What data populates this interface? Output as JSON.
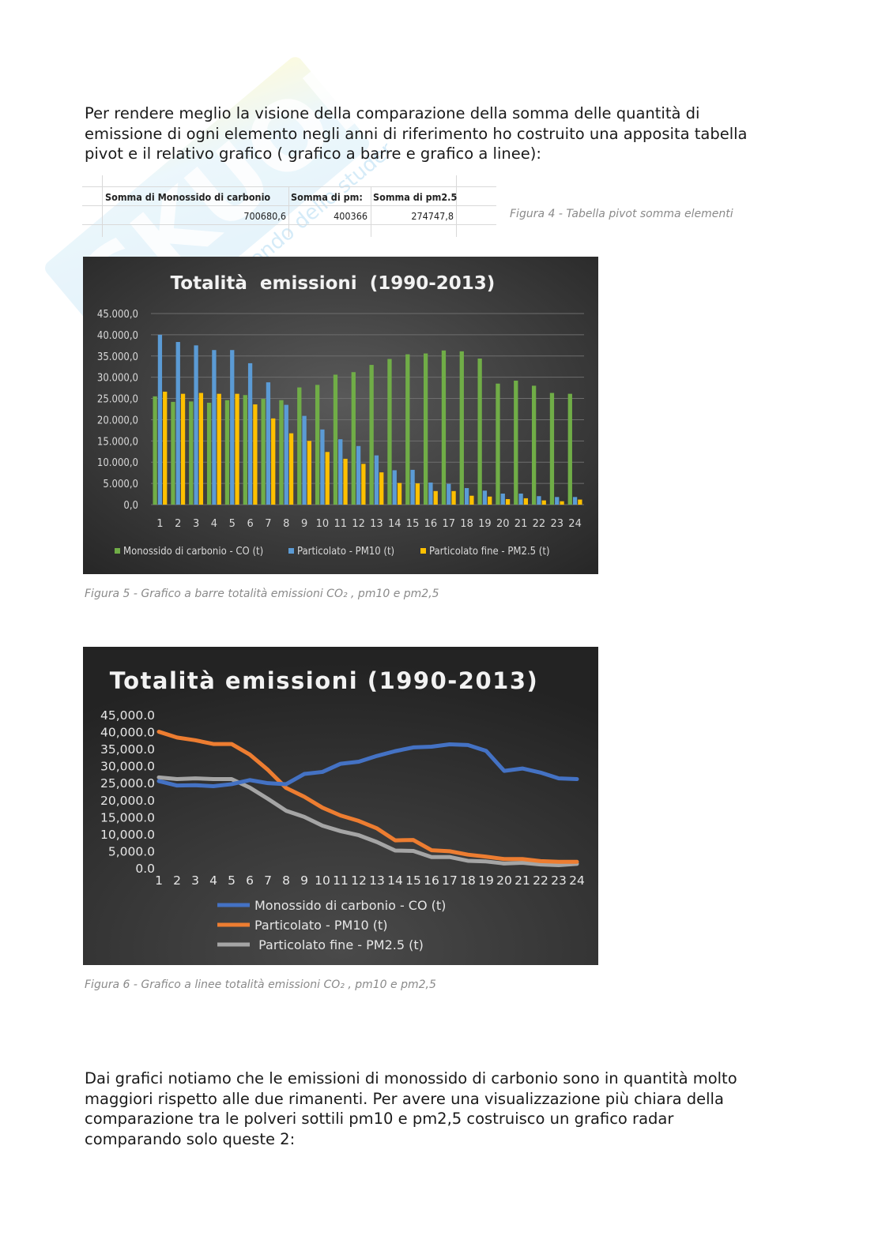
{
  "intro_lines": [
    "Per rendere meglio la visione della comparazione della somma delle quantità di",
    "emissione di ogni elemento negli anni di riferimento ho costruito una apposita tabella",
    "pivot e il relativo grafico ( grafico a barre e grafico a linee):"
  ],
  "pivot": {
    "headers": [
      "Somma di Monossido di carbonio",
      "Somma di pm:",
      "Somma di pm2.5"
    ],
    "values": [
      "700680,6",
      "400366",
      "274747,8"
    ]
  },
  "captions": {
    "fig4": "Figura 4 - Tabella pivot somma elementi",
    "fig5": "Figura 5 - Grafico a barre totalità emissioni CO₂ , pm10 e pm2,5",
    "fig6": "Figura 6 - Grafico a linee totalità emissioni CO₂ , pm10 e pm2,5"
  },
  "outro_lines": [
    "Dai grafici notiamo che le emissioni di monossido di carbonio sono in quantità molto",
    "maggiori rispetto alle due rimanenti. Per avere una visualizzazione più chiara della",
    "comparazione tra le polveri sottili pm10 e pm2,5 costruisco un grafico radar",
    "comparando solo queste 2:"
  ],
  "chart_data": [
    {
      "type": "bar",
      "title": "Totalità  emissioni  (1990-2013)",
      "categories": [
        "1",
        "2",
        "3",
        "4",
        "5",
        "6",
        "7",
        "8",
        "9",
        "10",
        "11",
        "12",
        "13",
        "14",
        "15",
        "16",
        "17",
        "18",
        "19",
        "20",
        "21",
        "22",
        "23",
        "24"
      ],
      "yticks": [
        "0,0",
        "5.000,0",
        "10.000,0",
        "15.000,0",
        "20.000,0",
        "25.000,0",
        "30.000,0",
        "35.000,0",
        "40.000,0",
        "45.000,0"
      ],
      "ylim": [
        0,
        45000
      ],
      "grid": true,
      "legend_position": "bottom",
      "series": [
        {
          "name": "Monossido di carbonio - CO (t)",
          "color": "#70ad47",
          "values": [
            25500,
            24200,
            24300,
            24000,
            24600,
            25800,
            24900,
            24600,
            27600,
            28200,
            30600,
            31200,
            32900,
            34300,
            35400,
            35600,
            36300,
            36100,
            34400,
            28500,
            29200,
            28000,
            26300,
            26100
          ]
        },
        {
          "name": "Particolato - PM10 (t)",
          "color": "#5b9bd5",
          "values": [
            40000,
            38300,
            37500,
            36400,
            36400,
            33300,
            28800,
            23500,
            20900,
            17700,
            15400,
            13800,
            11600,
            8100,
            8200,
            5200,
            4900,
            3900,
            3300,
            2600,
            2600,
            2000,
            1800,
            1800
          ]
        },
        {
          "name": "Particolato fine - PM2.5 (t)",
          "color": "#ffc000",
          "values": [
            26600,
            26100,
            26300,
            26100,
            26100,
            23600,
            20300,
            16800,
            15000,
            12400,
            10800,
            9600,
            7600,
            5100,
            5000,
            3200,
            3200,
            2100,
            1900,
            1300,
            1500,
            1000,
            800,
            1200
          ]
        }
      ]
    },
    {
      "type": "line",
      "title": "Totalità emissioni (1990-2013)",
      "categories": [
        "1",
        "2",
        "3",
        "4",
        "5",
        "6",
        "7",
        "8",
        "9",
        "10",
        "11",
        "12",
        "13",
        "14",
        "15",
        "16",
        "17",
        "18",
        "19",
        "20",
        "21",
        "22",
        "23",
        "24"
      ],
      "yticks": [
        "0.0",
        "5,000.0",
        "10,000.0",
        "15,000.0",
        "20,000.0",
        "25,000.0",
        "30,000.0",
        "35,000.0",
        "40,000.0",
        "45,000.0"
      ],
      "ylim": [
        0,
        45000
      ],
      "grid": false,
      "legend_position": "bottom",
      "series": [
        {
          "name": "Monossido di carbonio - CO (t)",
          "color": "#4472c4",
          "values": [
            25500,
            24200,
            24300,
            24000,
            24600,
            25800,
            24900,
            24600,
            27600,
            28200,
            30600,
            31200,
            32900,
            34300,
            35400,
            35600,
            36300,
            36100,
            34400,
            28500,
            29200,
            28000,
            26300,
            26100
          ]
        },
        {
          "name": "Particolato - PM10 (t)",
          "color": "#ed7d31",
          "values": [
            40000,
            38300,
            37500,
            36400,
            36400,
            33300,
            28800,
            23500,
            20900,
            17700,
            15400,
            13800,
            11600,
            8100,
            8200,
            5200,
            4900,
            3900,
            3300,
            2600,
            2600,
            2000,
            1800,
            1800
          ]
        },
        {
          "name": " Particolato fine - PM2.5 (t)",
          "color": "#a5a5a5",
          "values": [
            26600,
            26100,
            26300,
            26100,
            26100,
            23600,
            20300,
            16800,
            15000,
            12400,
            10800,
            9600,
            7600,
            5100,
            5000,
            3200,
            3200,
            2100,
            1900,
            1300,
            1500,
            1000,
            800,
            1200
          ]
        }
      ]
    }
  ]
}
